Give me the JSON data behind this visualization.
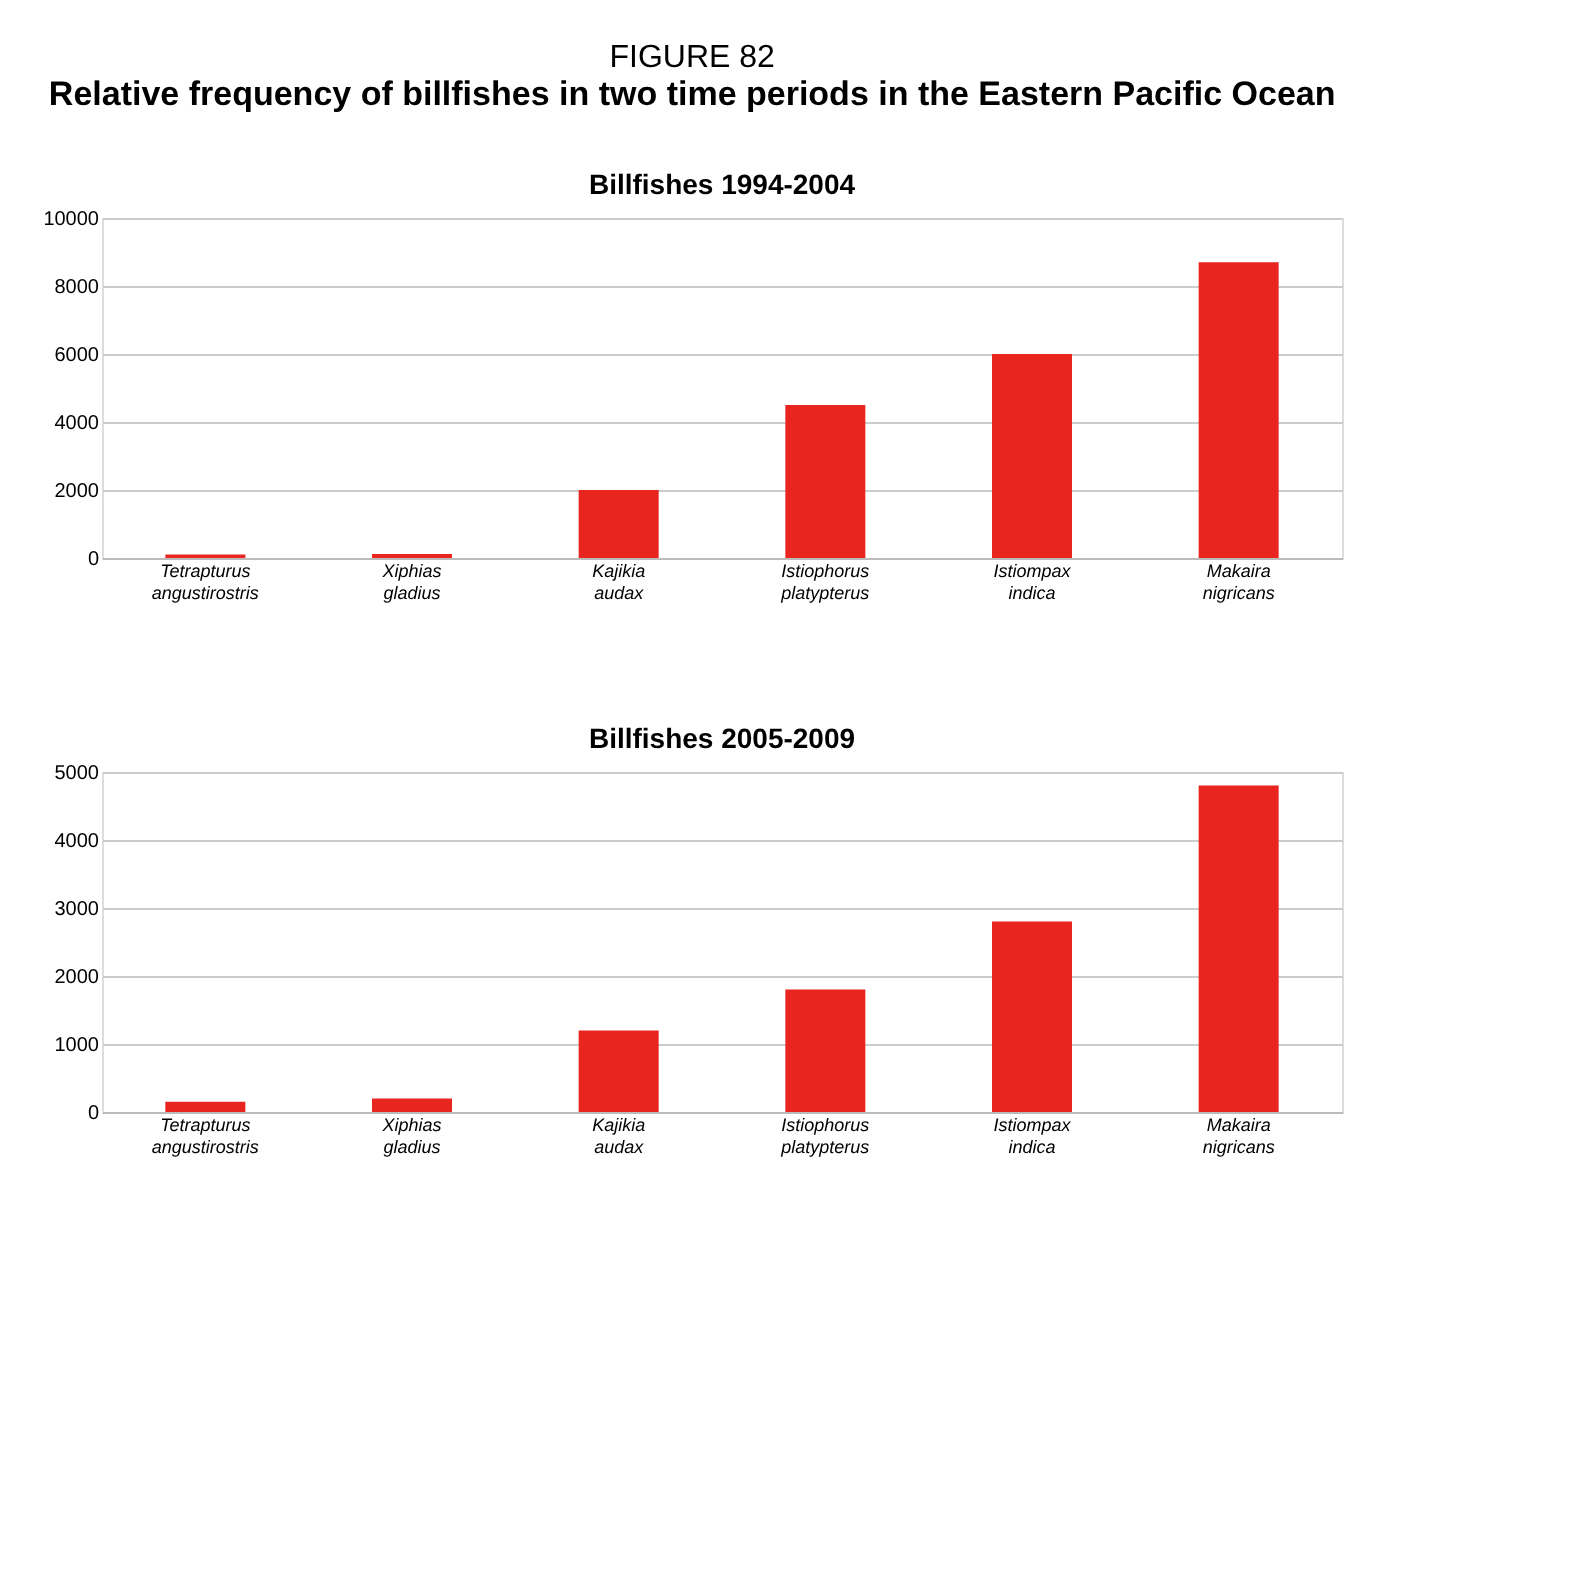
{
  "chart_data": [
    {
      "type": "bar",
      "title": "Billfishes 1994-2004",
      "annotations": [
        "FIGURE 82",
        "Relative frequency of billfishes in two time periods in the Eastern Pacific Ocean"
      ],
      "categories": [
        "Tetrapturus angustirostris",
        "Xiphias gladius",
        "Kajikia audax",
        "Istiophorus platypterus",
        "Istiompax indica",
        "Makaira nigricans"
      ],
      "series": [
        {
          "color": "#e8251f",
          "values": [
            100,
            120,
            2000,
            4500,
            6000,
            8700
          ]
        }
      ],
      "ylim": [
        0,
        10000
      ],
      "yticks": [
        0,
        2000,
        4000,
        6000,
        8000,
        10000
      ],
      "grid": "y",
      "legend": false
    },
    {
      "type": "bar",
      "title": "Billfishes 2005-2009",
      "categories": [
        "Tetrapturus angustirostris",
        "Xiphias gladius",
        "Kajikia audax",
        "Istiophorus platypterus",
        "Istiompax indica",
        "Makaira nigricans"
      ],
      "series": [
        {
          "color": "#e8251f",
          "values": [
            150,
            200,
            1200,
            1800,
            2800,
            4800
          ]
        }
      ],
      "ylim": [
        0,
        5000
      ],
      "yticks": [
        0,
        1000,
        2000,
        3000,
        4000,
        5000
      ],
      "grid": "y",
      "legend": false
    }
  ]
}
